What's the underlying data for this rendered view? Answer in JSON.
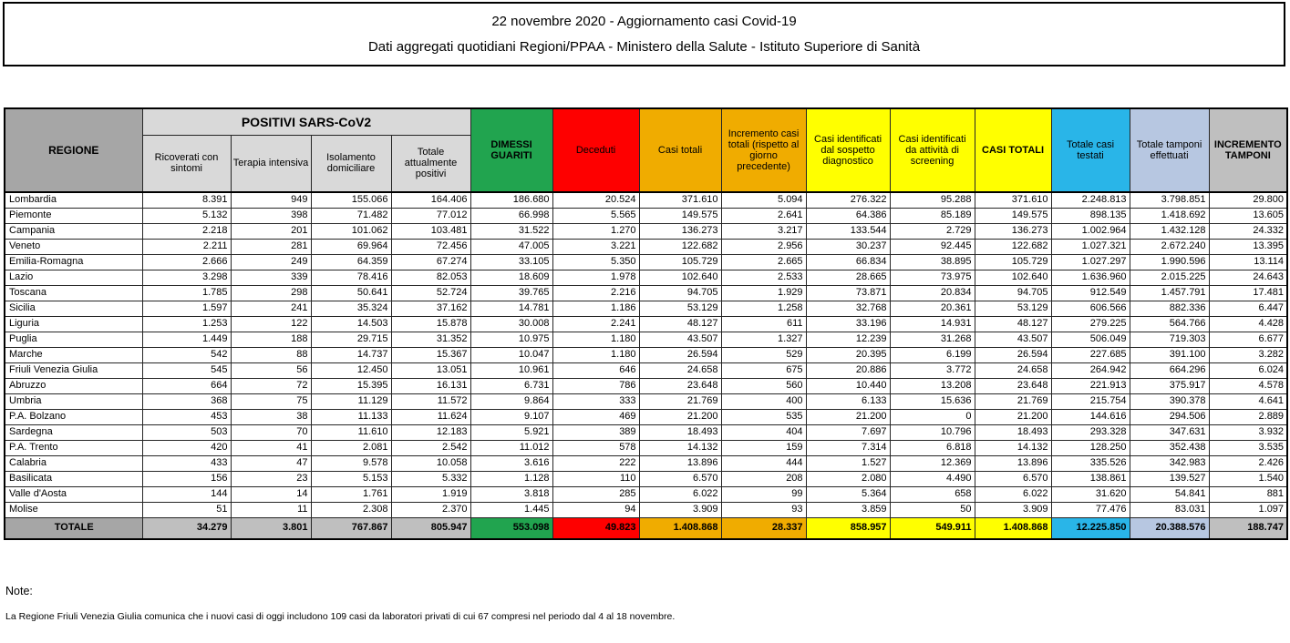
{
  "title": {
    "line1": "22 novembre 2020 - Aggiornamento casi Covid-19",
    "line2": "Dati aggregati quotidiani Regioni/PPAA - Ministero della Salute - Istituto Superiore di Sanità"
  },
  "colors": {
    "green": "#21A44F",
    "red": "#FE0000",
    "orange": "#F0AC00",
    "yellow": "#FFFF00",
    "cyan": "#29B5E8",
    "lblue": "#B7C7E1",
    "gray-dark": "#A6A6A6",
    "gray-light": "#D9D9D9",
    "gray-total": "#BFBFBF"
  },
  "table": {
    "header": {
      "regione": "REGIONE",
      "positivi_group": "POSITIVI SARS-CoV2",
      "sub": [
        "Ricoverati con sintomi",
        "Terapia intensiva",
        "Isolamento domiciliare",
        "Totale attualmente positivi"
      ],
      "dimessi_guariti": "DIMESSI GUARITI",
      "deceduti": "Deceduti",
      "casi_totali": "Casi totali",
      "incremento_casi": "Incremento casi totali (rispetto al giorno precedente)",
      "casi_sospetto": "Casi identificati dal sospetto diagnostico",
      "casi_screening": "Casi identificati da attività di screening",
      "casi_totali_caps": "CASI TOTALI",
      "casi_testati": "Totale casi testati",
      "tamponi": "Totale tamponi effettuati",
      "incremento_tamponi": "INCREMENTO TAMPONI"
    },
    "rows": [
      {
        "region": "Lombardia",
        "values": [
          "8.391",
          "949",
          "155.066",
          "164.406",
          "186.680",
          "20.524",
          "371.610",
          "5.094",
          "276.322",
          "95.288",
          "371.610",
          "2.248.813",
          "3.798.851",
          "29.800"
        ]
      },
      {
        "region": "Piemonte",
        "values": [
          "5.132",
          "398",
          "71.482",
          "77.012",
          "66.998",
          "5.565",
          "149.575",
          "2.641",
          "64.386",
          "85.189",
          "149.575",
          "898.135",
          "1.418.692",
          "13.605"
        ]
      },
      {
        "region": "Campania",
        "values": [
          "2.218",
          "201",
          "101.062",
          "103.481",
          "31.522",
          "1.270",
          "136.273",
          "3.217",
          "133.544",
          "2.729",
          "136.273",
          "1.002.964",
          "1.432.128",
          "24.332"
        ]
      },
      {
        "region": "Veneto",
        "values": [
          "2.211",
          "281",
          "69.964",
          "72.456",
          "47.005",
          "3.221",
          "122.682",
          "2.956",
          "30.237",
          "92.445",
          "122.682",
          "1.027.321",
          "2.672.240",
          "13.395"
        ]
      },
      {
        "region": "Emilia-Romagna",
        "values": [
          "2.666",
          "249",
          "64.359",
          "67.274",
          "33.105",
          "5.350",
          "105.729",
          "2.665",
          "66.834",
          "38.895",
          "105.729",
          "1.027.297",
          "1.990.596",
          "13.114"
        ]
      },
      {
        "region": "Lazio",
        "values": [
          "3.298",
          "339",
          "78.416",
          "82.053",
          "18.609",
          "1.978",
          "102.640",
          "2.533",
          "28.665",
          "73.975",
          "102.640",
          "1.636.960",
          "2.015.225",
          "24.643"
        ]
      },
      {
        "region": "Toscana",
        "values": [
          "1.785",
          "298",
          "50.641",
          "52.724",
          "39.765",
          "2.216",
          "94.705",
          "1.929",
          "73.871",
          "20.834",
          "94.705",
          "912.549",
          "1.457.791",
          "17.481"
        ]
      },
      {
        "region": "Sicilia",
        "values": [
          "1.597",
          "241",
          "35.324",
          "37.162",
          "14.781",
          "1.186",
          "53.129",
          "1.258",
          "32.768",
          "20.361",
          "53.129",
          "606.566",
          "882.336",
          "6.447"
        ]
      },
      {
        "region": "Liguria",
        "values": [
          "1.253",
          "122",
          "14.503",
          "15.878",
          "30.008",
          "2.241",
          "48.127",
          "611",
          "33.196",
          "14.931",
          "48.127",
          "279.225",
          "564.766",
          "4.428"
        ]
      },
      {
        "region": "Puglia",
        "values": [
          "1.449",
          "188",
          "29.715",
          "31.352",
          "10.975",
          "1.180",
          "43.507",
          "1.327",
          "12.239",
          "31.268",
          "43.507",
          "506.049",
          "719.303",
          "6.677"
        ]
      },
      {
        "region": "Marche",
        "values": [
          "542",
          "88",
          "14.737",
          "15.367",
          "10.047",
          "1.180",
          "26.594",
          "529",
          "20.395",
          "6.199",
          "26.594",
          "227.685",
          "391.100",
          "3.282"
        ]
      },
      {
        "region": "Friuli Venezia Giulia",
        "values": [
          "545",
          "56",
          "12.450",
          "13.051",
          "10.961",
          "646",
          "24.658",
          "675",
          "20.886",
          "3.772",
          "24.658",
          "264.942",
          "664.296",
          "6.024"
        ]
      },
      {
        "region": "Abruzzo",
        "values": [
          "664",
          "72",
          "15.395",
          "16.131",
          "6.731",
          "786",
          "23.648",
          "560",
          "10.440",
          "13.208",
          "23.648",
          "221.913",
          "375.917",
          "4.578"
        ]
      },
      {
        "region": "Umbria",
        "values": [
          "368",
          "75",
          "11.129",
          "11.572",
          "9.864",
          "333",
          "21.769",
          "400",
          "6.133",
          "15.636",
          "21.769",
          "215.754",
          "390.378",
          "4.641"
        ]
      },
      {
        "region": "P.A. Bolzano",
        "values": [
          "453",
          "38",
          "11.133",
          "11.624",
          "9.107",
          "469",
          "21.200",
          "535",
          "21.200",
          "0",
          "21.200",
          "144.616",
          "294.506",
          "2.889"
        ]
      },
      {
        "region": "Sardegna",
        "values": [
          "503",
          "70",
          "11.610",
          "12.183",
          "5.921",
          "389",
          "18.493",
          "404",
          "7.697",
          "10.796",
          "18.493",
          "293.328",
          "347.631",
          "3.932"
        ]
      },
      {
        "region": "P.A. Trento",
        "values": [
          "420",
          "41",
          "2.081",
          "2.542",
          "11.012",
          "578",
          "14.132",
          "159",
          "7.314",
          "6.818",
          "14.132",
          "128.250",
          "352.438",
          "3.535"
        ]
      },
      {
        "region": "Calabria",
        "values": [
          "433",
          "47",
          "9.578",
          "10.058",
          "3.616",
          "222",
          "13.896",
          "444",
          "1.527",
          "12.369",
          "13.896",
          "335.526",
          "342.983",
          "2.426"
        ]
      },
      {
        "region": "Basilicata",
        "values": [
          "156",
          "23",
          "5.153",
          "5.332",
          "1.128",
          "110",
          "6.570",
          "208",
          "2.080",
          "4.490",
          "6.570",
          "138.861",
          "139.527",
          "1.540"
        ]
      },
      {
        "region": "Valle d'Aosta",
        "values": [
          "144",
          "14",
          "1.761",
          "1.919",
          "3.818",
          "285",
          "6.022",
          "99",
          "5.364",
          "658",
          "6.022",
          "31.620",
          "54.841",
          "881"
        ]
      },
      {
        "region": "Molise",
        "values": [
          "51",
          "11",
          "2.308",
          "2.370",
          "1.445",
          "94",
          "3.909",
          "93",
          "3.859",
          "50",
          "3.909",
          "77.476",
          "83.031",
          "1.097"
        ]
      }
    ],
    "total_row": {
      "region": "TOTALE",
      "values": [
        "34.279",
        "3.801",
        "767.867",
        "805.947",
        "553.098",
        "49.823",
        "1.408.868",
        "28.337",
        "858.957",
        "549.911",
        "1.408.868",
        "12.225.850",
        "20.388.576",
        "188.747"
      ]
    }
  },
  "notes": {
    "label": "Note:",
    "text": "La Regione Friuli Venezia Giulia comunica che i nuovi casi di oggi includono 109 casi da laboratori privati di cui 67 compresi nel periodo dal 4 al 18 novembre."
  }
}
